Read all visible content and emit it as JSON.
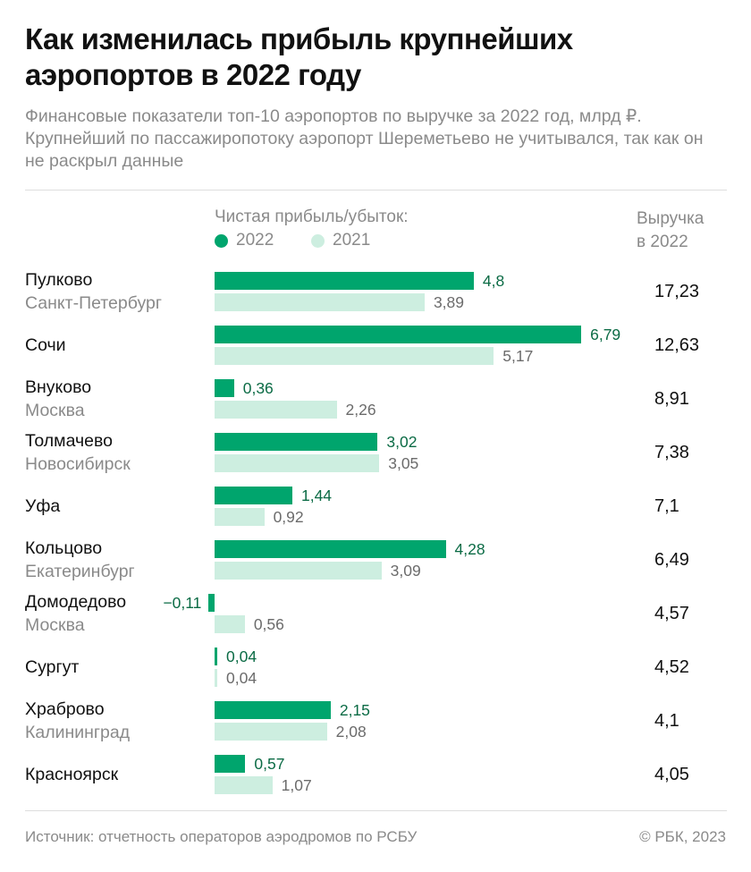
{
  "title": "Как изменилась прибыль крупнейших аэропортов в 2022 году",
  "subtitle": "Финансовые показатели топ-10 аэропортов по выручке за 2022 год, млрд ₽. Крупнейший по пассажиропотоку аэропорт Шереметьево не учитывался, так как он не раскрыл данные",
  "legend": {
    "title": "Чистая прибыль/убыток:",
    "y2022": "2022",
    "y2021": "2021"
  },
  "revenue_header": "Выручка в 2022",
  "colors": {
    "c2022": "#00a56d",
    "c2021": "#cdeee0",
    "label2022": "#0b6b45",
    "label2021": "#6b6b6b"
  },
  "footer": {
    "source": "Источник: отчетность операторов аэродромов по РСБУ",
    "copyright": "© РБК, 2023"
  },
  "chart_data": {
    "type": "bar",
    "orientation": "horizontal",
    "title": "Как изменилась прибыль крупнейших аэропортов в 2022 году",
    "xlabel": "Чистая прибыль/убыток, млрд ₽",
    "categories": [
      {
        "name": "Пулково",
        "city": "Санкт-Петербург"
      },
      {
        "name": "Сочи",
        "city": ""
      },
      {
        "name": "Внуково",
        "city": "Москва"
      },
      {
        "name": "Толмачево",
        "city": "Новосибирск"
      },
      {
        "name": "Уфа",
        "city": ""
      },
      {
        "name": "Кольцово",
        "city": "Екатеринбург"
      },
      {
        "name": "Домодедово",
        "city": "Москва"
      },
      {
        "name": "Сургут",
        "city": ""
      },
      {
        "name": "Храброво",
        "city": "Калининград"
      },
      {
        "name": "Красноярск",
        "city": ""
      }
    ],
    "series": [
      {
        "name": "2022",
        "values": [
          4.8,
          6.79,
          0.36,
          3.02,
          1.44,
          4.28,
          -0.11,
          0.04,
          2.15,
          0.57
        ],
        "labels": [
          "4,8",
          "6,79",
          "0,36",
          "3,02",
          "1,44",
          "4,28",
          "−0,11",
          "0,04",
          "2,15",
          "0,57"
        ]
      },
      {
        "name": "2021",
        "values": [
          3.89,
          5.17,
          2.26,
          3.05,
          0.92,
          3.09,
          0.56,
          0.04,
          2.08,
          1.07
        ],
        "labels": [
          "3,89",
          "5,17",
          "2,26",
          "3,05",
          "0,92",
          "3,09",
          "0,56",
          "0,04",
          "2,08",
          "1,07"
        ]
      }
    ],
    "revenue_2022": [
      "17,23",
      "12,63",
      "8,91",
      "7,38",
      "7,1",
      "6,49",
      "4,57",
      "4,52",
      "4,1",
      "4,05"
    ],
    "xlim": [
      -0.11,
      6.79
    ],
    "grid": false,
    "legend": "top"
  }
}
